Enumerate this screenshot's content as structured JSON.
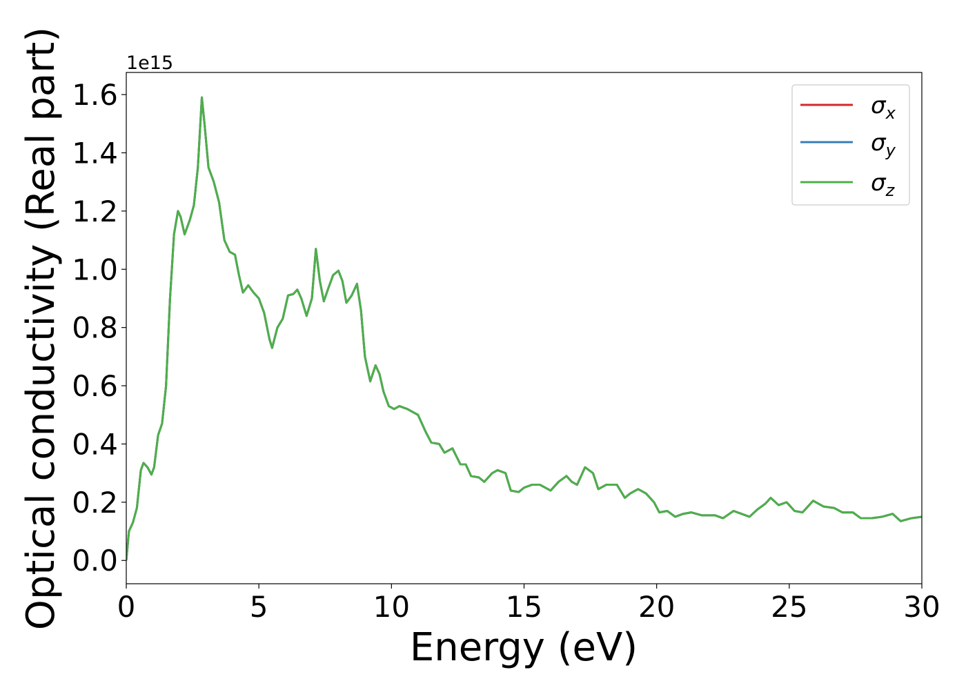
{
  "chart_data": {
    "type": "line",
    "x_label": "Energy (eV)",
    "y_label": "Optical conductivity (Real part)",
    "y_offset_label": "1e15",
    "xlim": [
      0,
      30
    ],
    "xticks": [
      0,
      5,
      10,
      15,
      20,
      25,
      30
    ],
    "ylim": [
      -0.08,
      1.676
    ],
    "yticks": [
      {
        "value": 0,
        "label": "0.0"
      },
      0.2,
      0.4,
      0.6,
      0.8,
      {
        "value": 1,
        "label": "1.0"
      },
      1.2,
      1.4,
      1.6
    ],
    "grid": false,
    "legend": "upper right",
    "x": [
      0,
      0.1,
      0.25,
      0.4,
      0.55,
      0.65,
      0.8,
      0.95,
      1.05,
      1.2,
      1.35,
      1.5,
      1.65,
      1.8,
      1.95,
      2.05,
      2.2,
      2.4,
      2.55,
      2.7,
      2.85,
      2.95,
      3.1,
      3.3,
      3.5,
      3.7,
      3.9,
      4.1,
      4.25,
      4.4,
      4.6,
      4.8,
      5.0,
      5.2,
      5.4,
      5.5,
      5.7,
      5.9,
      6.1,
      6.3,
      6.45,
      6.6,
      6.8,
      7.0,
      7.15,
      7.3,
      7.45,
      7.6,
      7.8,
      8.0,
      8.15,
      8.3,
      8.5,
      8.7,
      8.85,
      9.0,
      9.2,
      9.4,
      9.55,
      9.7,
      9.9,
      10.1,
      10.3,
      10.6,
      10.8,
      11.0,
      11.3,
      11.5,
      11.8,
      12.0,
      12.3,
      12.6,
      12.8,
      13.0,
      13.3,
      13.5,
      13.8,
      14.0,
      14.3,
      14.5,
      14.8,
      15.0,
      15.3,
      15.6,
      16.0,
      16.3,
      16.6,
      16.8,
      17.0,
      17.3,
      17.6,
      17.8,
      18.1,
      18.5,
      18.8,
      19.0,
      19.3,
      19.6,
      19.9,
      20.1,
      20.4,
      20.7,
      21.0,
      21.3,
      21.7,
      22.2,
      22.5,
      22.9,
      23.2,
      23.5,
      23.8,
      24.1,
      24.3,
      24.6,
      24.9,
      25.2,
      25.5,
      25.9,
      26.3,
      26.7,
      27.0,
      27.4,
      27.7,
      28.1,
      28.5,
      28.9,
      29.2,
      29.6,
      30.0
    ],
    "series": [
      {
        "name": "σx",
        "color": "#d62728",
        "values": [
          0,
          0.1,
          0.13,
          0.18,
          0.31,
          0.335,
          0.32,
          0.295,
          0.32,
          0.43,
          0.47,
          0.6,
          0.9,
          1.12,
          1.2,
          1.18,
          1.12,
          1.17,
          1.22,
          1.35,
          1.59,
          1.5,
          1.35,
          1.3,
          1.23,
          1.1,
          1.06,
          1.05,
          0.98,
          0.92,
          0.945,
          0.92,
          0.9,
          0.85,
          0.76,
          0.73,
          0.8,
          0.83,
          0.91,
          0.915,
          0.93,
          0.9,
          0.84,
          0.9,
          1.07,
          0.96,
          0.89,
          0.93,
          0.98,
          0.995,
          0.96,
          0.885,
          0.91,
          0.95,
          0.86,
          0.7,
          0.615,
          0.67,
          0.64,
          0.58,
          0.53,
          0.52,
          0.53,
          0.52,
          0.51,
          0.5,
          0.44,
          0.405,
          0.4,
          0.37,
          0.385,
          0.33,
          0.33,
          0.29,
          0.285,
          0.27,
          0.3,
          0.31,
          0.3,
          0.24,
          0.235,
          0.25,
          0.26,
          0.26,
          0.24,
          0.27,
          0.29,
          0.27,
          0.26,
          0.32,
          0.3,
          0.245,
          0.26,
          0.26,
          0.215,
          0.23,
          0.245,
          0.23,
          0.2,
          0.165,
          0.17,
          0.15,
          0.16,
          0.165,
          0.155,
          0.155,
          0.145,
          0.17,
          0.16,
          0.15,
          0.175,
          0.195,
          0.215,
          0.19,
          0.2,
          0.17,
          0.165,
          0.205,
          0.185,
          0.18,
          0.165,
          0.165,
          0.145,
          0.145,
          0.15,
          0.16,
          0.135,
          0.145,
          0.15
        ]
      },
      {
        "name": "σy",
        "color": "#377eb8",
        "values": [
          0,
          0.1,
          0.13,
          0.18,
          0.31,
          0.335,
          0.32,
          0.295,
          0.32,
          0.43,
          0.47,
          0.6,
          0.9,
          1.12,
          1.2,
          1.18,
          1.12,
          1.17,
          1.22,
          1.35,
          1.59,
          1.5,
          1.35,
          1.3,
          1.23,
          1.1,
          1.06,
          1.05,
          0.98,
          0.92,
          0.945,
          0.92,
          0.9,
          0.85,
          0.76,
          0.73,
          0.8,
          0.83,
          0.91,
          0.915,
          0.93,
          0.9,
          0.84,
          0.9,
          1.07,
          0.96,
          0.89,
          0.93,
          0.98,
          0.995,
          0.96,
          0.885,
          0.91,
          0.95,
          0.86,
          0.7,
          0.615,
          0.67,
          0.64,
          0.58,
          0.53,
          0.52,
          0.53,
          0.52,
          0.51,
          0.5,
          0.44,
          0.405,
          0.4,
          0.37,
          0.385,
          0.33,
          0.33,
          0.29,
          0.285,
          0.27,
          0.3,
          0.31,
          0.3,
          0.24,
          0.235,
          0.25,
          0.26,
          0.26,
          0.24,
          0.27,
          0.29,
          0.27,
          0.26,
          0.32,
          0.3,
          0.245,
          0.26,
          0.26,
          0.215,
          0.23,
          0.245,
          0.23,
          0.2,
          0.165,
          0.17,
          0.15,
          0.16,
          0.165,
          0.155,
          0.155,
          0.145,
          0.17,
          0.16,
          0.15,
          0.175,
          0.195,
          0.215,
          0.19,
          0.2,
          0.17,
          0.165,
          0.205,
          0.185,
          0.18,
          0.165,
          0.165,
          0.145,
          0.145,
          0.15,
          0.16,
          0.135,
          0.145,
          0.15
        ]
      },
      {
        "name": "σz",
        "color": "#4daf4a",
        "values": [
          0,
          0.1,
          0.13,
          0.18,
          0.31,
          0.335,
          0.32,
          0.295,
          0.32,
          0.43,
          0.47,
          0.6,
          0.9,
          1.12,
          1.2,
          1.18,
          1.12,
          1.17,
          1.22,
          1.35,
          1.59,
          1.5,
          1.35,
          1.3,
          1.23,
          1.1,
          1.06,
          1.05,
          0.98,
          0.92,
          0.945,
          0.92,
          0.9,
          0.85,
          0.76,
          0.73,
          0.8,
          0.83,
          0.91,
          0.915,
          0.93,
          0.9,
          0.84,
          0.9,
          1.07,
          0.96,
          0.89,
          0.93,
          0.98,
          0.995,
          0.96,
          0.885,
          0.91,
          0.95,
          0.86,
          0.7,
          0.615,
          0.67,
          0.64,
          0.58,
          0.53,
          0.52,
          0.53,
          0.52,
          0.51,
          0.5,
          0.44,
          0.405,
          0.4,
          0.37,
          0.385,
          0.33,
          0.33,
          0.29,
          0.285,
          0.27,
          0.3,
          0.31,
          0.3,
          0.24,
          0.235,
          0.25,
          0.26,
          0.26,
          0.24,
          0.27,
          0.29,
          0.27,
          0.26,
          0.32,
          0.3,
          0.245,
          0.26,
          0.26,
          0.215,
          0.23,
          0.245,
          0.23,
          0.2,
          0.165,
          0.17,
          0.15,
          0.16,
          0.165,
          0.155,
          0.155,
          0.145,
          0.17,
          0.16,
          0.15,
          0.175,
          0.195,
          0.215,
          0.19,
          0.2,
          0.17,
          0.165,
          0.205,
          0.185,
          0.18,
          0.165,
          0.165,
          0.145,
          0.145,
          0.15,
          0.16,
          0.135,
          0.145,
          0.15
        ]
      }
    ]
  }
}
